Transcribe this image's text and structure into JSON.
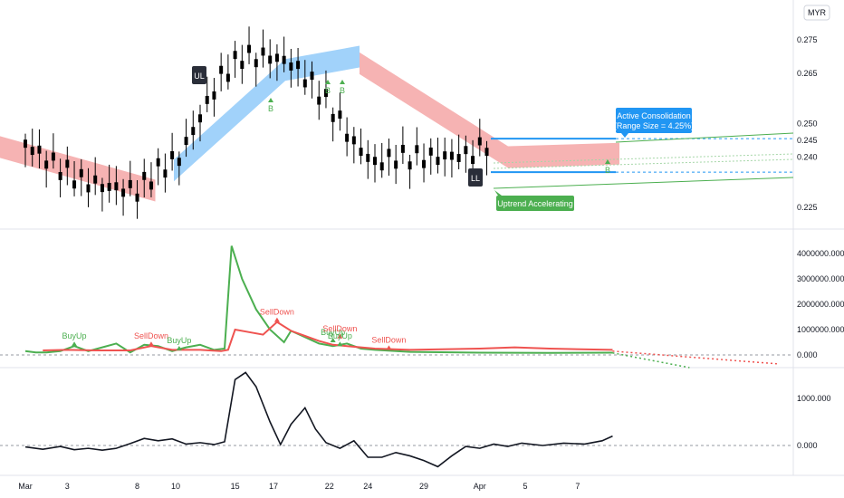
{
  "currency_badge": "MYR",
  "colors": {
    "up": "#4caf50",
    "down": "#ef5350",
    "ribbon_up": "#90caf9",
    "ribbon_down": "#f4a6a6",
    "callout_blue": "#2196f3",
    "callout_green": "#4caf50",
    "label_dark": "#2a2e39",
    "osc_line": "#131722"
  },
  "chart_data": [
    {
      "type": "candlestick",
      "pane": "price",
      "y_ticks": [
        "0.275",
        "0.265",
        "0.250",
        "0.245",
        "0.240",
        "0.225"
      ],
      "last_price_tag": "0.245",
      "ribbon": {
        "segments": [
          {
            "color": "down",
            "x_from": "Feb 27",
            "x_to": "Mar 8",
            "level_from": 0.244,
            "level_to": 0.23
          },
          {
            "color": "up",
            "x_from": "Mar 9",
            "x_to": "Mar 15",
            "level_from": 0.236,
            "level_to": 0.266
          },
          {
            "color": "up",
            "x_from": "Mar 15",
            "x_to": "Mar 19",
            "level_from": 0.266,
            "level_to": 0.27
          },
          {
            "color": "down",
            "x_from": "Mar 19",
            "x_to": "Mar 27",
            "level_from": 0.268,
            "level_to": 0.24
          },
          {
            "color": "down",
            "x_from": "Mar 27",
            "x_to": "Apr 2",
            "level_from": 0.24,
            "level_to": 0.241
          }
        ]
      },
      "labels": [
        {
          "text": "UL",
          "style": "dark-box"
        },
        {
          "text": "LL",
          "style": "dark-box"
        },
        {
          "text": "B",
          "style": "green-triangle"
        },
        {
          "text": "B",
          "style": "green-triangle"
        },
        {
          "text": "B",
          "style": "green-triangle"
        },
        {
          "text": "B",
          "style": "green-triangle"
        }
      ],
      "consolidation_box": {
        "title": "Active Consolidation",
        "subtitle": "(Range Size = 4.25%)",
        "upper": 0.2455,
        "lower": 0.2355
      },
      "uptrend_label": "Uptrend Accelerating"
    },
    {
      "type": "line",
      "pane": "volume-pressure",
      "y_ticks": [
        "4000000.000",
        "3000000.000",
        "2000000.000",
        "1000000.000",
        "0.000"
      ],
      "series": [
        {
          "name": "",
          "color": "up",
          "values": [
            [
              0,
              150000
            ],
            [
              3,
              100000
            ],
            [
              6,
              100000
            ],
            [
              10,
              150000
            ],
            [
              14,
              350000
            ],
            [
              18,
              150000
            ],
            [
              22,
              300000
            ],
            [
              26,
              450000
            ],
            [
              30,
              100000
            ],
            [
              34,
              400000
            ],
            [
              38,
              350000
            ],
            [
              42,
              150000
            ],
            [
              46,
              300000
            ],
            [
              50,
              400000
            ],
            [
              54,
              200000
            ],
            [
              57,
              250000
            ],
            [
              59,
              4300000
            ],
            [
              62,
              3000000
            ],
            [
              66,
              1800000
            ],
            [
              70,
              1000000
            ],
            [
              74,
              500000
            ],
            [
              76,
              950000
            ],
            [
              80,
              700000
            ],
            [
              84,
              450000
            ],
            [
              88,
              350000
            ],
            [
              92,
              450000
            ],
            [
              96,
              250000
            ],
            [
              100,
              200000
            ],
            [
              110,
              120000
            ],
            [
              130,
              90000
            ],
            [
              150,
              80000
            ],
            [
              168,
              90000
            ]
          ]
        },
        {
          "name": "",
          "color": "down",
          "values": [
            [
              5,
              180000
            ],
            [
              12,
              200000
            ],
            [
              20,
              180000
            ],
            [
              30,
              180000
            ],
            [
              36,
              350000
            ],
            [
              42,
              200000
            ],
            [
              50,
              200000
            ],
            [
              56,
              150000
            ],
            [
              58,
              200000
            ],
            [
              60,
              1000000
            ],
            [
              64,
              900000
            ],
            [
              68,
              800000
            ],
            [
              72,
              1300000
            ],
            [
              76,
              950000
            ],
            [
              80,
              750000
            ],
            [
              84,
              550000
            ],
            [
              88,
              400000
            ],
            [
              92,
              350000
            ],
            [
              100,
              250000
            ],
            [
              110,
              200000
            ],
            [
              130,
              250000
            ],
            [
              140,
              300000
            ],
            [
              150,
              250000
            ],
            [
              168,
              200000
            ]
          ]
        }
      ],
      "forecast": [
        {
          "color": "down",
          "from": [
            168,
            150000
          ],
          "to": [
            215,
            -350000
          ]
        },
        {
          "color": "up",
          "from": [
            168,
            80000
          ],
          "to": [
            190,
            -500000
          ]
        }
      ],
      "annotations": [
        {
          "text": "BuyUp",
          "color": "up",
          "x": 14,
          "y": 350000
        },
        {
          "text": "SellDown",
          "color": "down",
          "x": 36,
          "y": 350000
        },
        {
          "text": "BuyUp",
          "color": "up",
          "x": 44,
          "y": 180000
        },
        {
          "text": "SellDown",
          "color": "down",
          "x": 72,
          "y": 1300000
        },
        {
          "text": "BuyUp",
          "color": "up",
          "x": 88,
          "y": 500000
        },
        {
          "text": "SellDown",
          "color": "down",
          "x": 90,
          "y": 650000
        },
        {
          "text": "BuyUp",
          "color": "up",
          "x": 90,
          "y": 350000
        },
        {
          "text": "SellDown",
          "color": "down",
          "x": 104,
          "y": 200000
        }
      ]
    },
    {
      "type": "line",
      "pane": "oscillator",
      "y_ticks": [
        "1000.000",
        "0.000"
      ],
      "series": [
        {
          "name": "",
          "color": "osc_line",
          "values": [
            [
              0,
              -30
            ],
            [
              5,
              -80
            ],
            [
              10,
              -20
            ],
            [
              14,
              -90
            ],
            [
              18,
              -60
            ],
            [
              22,
              -100
            ],
            [
              26,
              -60
            ],
            [
              30,
              40
            ],
            [
              34,
              150
            ],
            [
              38,
              100
            ],
            [
              42,
              140
            ],
            [
              46,
              30
            ],
            [
              50,
              60
            ],
            [
              54,
              20
            ],
            [
              57,
              80
            ],
            [
              60,
              1400
            ],
            [
              63,
              1550
            ],
            [
              66,
              1250
            ],
            [
              70,
              500
            ],
            [
              73,
              20
            ],
            [
              76,
              450
            ],
            [
              80,
              800
            ],
            [
              83,
              350
            ],
            [
              86,
              60
            ],
            [
              90,
              -60
            ],
            [
              94,
              100
            ],
            [
              98,
              -250
            ],
            [
              102,
              -250
            ],
            [
              106,
              -150
            ],
            [
              110,
              -220
            ],
            [
              114,
              -320
            ],
            [
              118,
              -450
            ],
            [
              122,
              -220
            ],
            [
              126,
              -20
            ],
            [
              130,
              -60
            ],
            [
              134,
              30
            ],
            [
              138,
              -20
            ],
            [
              142,
              50
            ],
            [
              148,
              0
            ],
            [
              154,
              50
            ],
            [
              160,
              30
            ],
            [
              165,
              100
            ],
            [
              168,
              200
            ]
          ]
        }
      ]
    }
  ],
  "x_axis": {
    "ticks": [
      {
        "label": "Mar",
        "bar": 0
      },
      {
        "label": "3",
        "bar": 12
      },
      {
        "label": "8",
        "bar": 32
      },
      {
        "label": "10",
        "bar": 43
      },
      {
        "label": "15",
        "bar": 60
      },
      {
        "label": "17",
        "bar": 71
      },
      {
        "label": "22",
        "bar": 87
      },
      {
        "label": "24",
        "bar": 98
      },
      {
        "label": "29",
        "bar": 114
      },
      {
        "label": "Apr",
        "bar": 130
      },
      {
        "label": "5",
        "bar": 143
      },
      {
        "label": "7",
        "bar": 158
      }
    ]
  }
}
